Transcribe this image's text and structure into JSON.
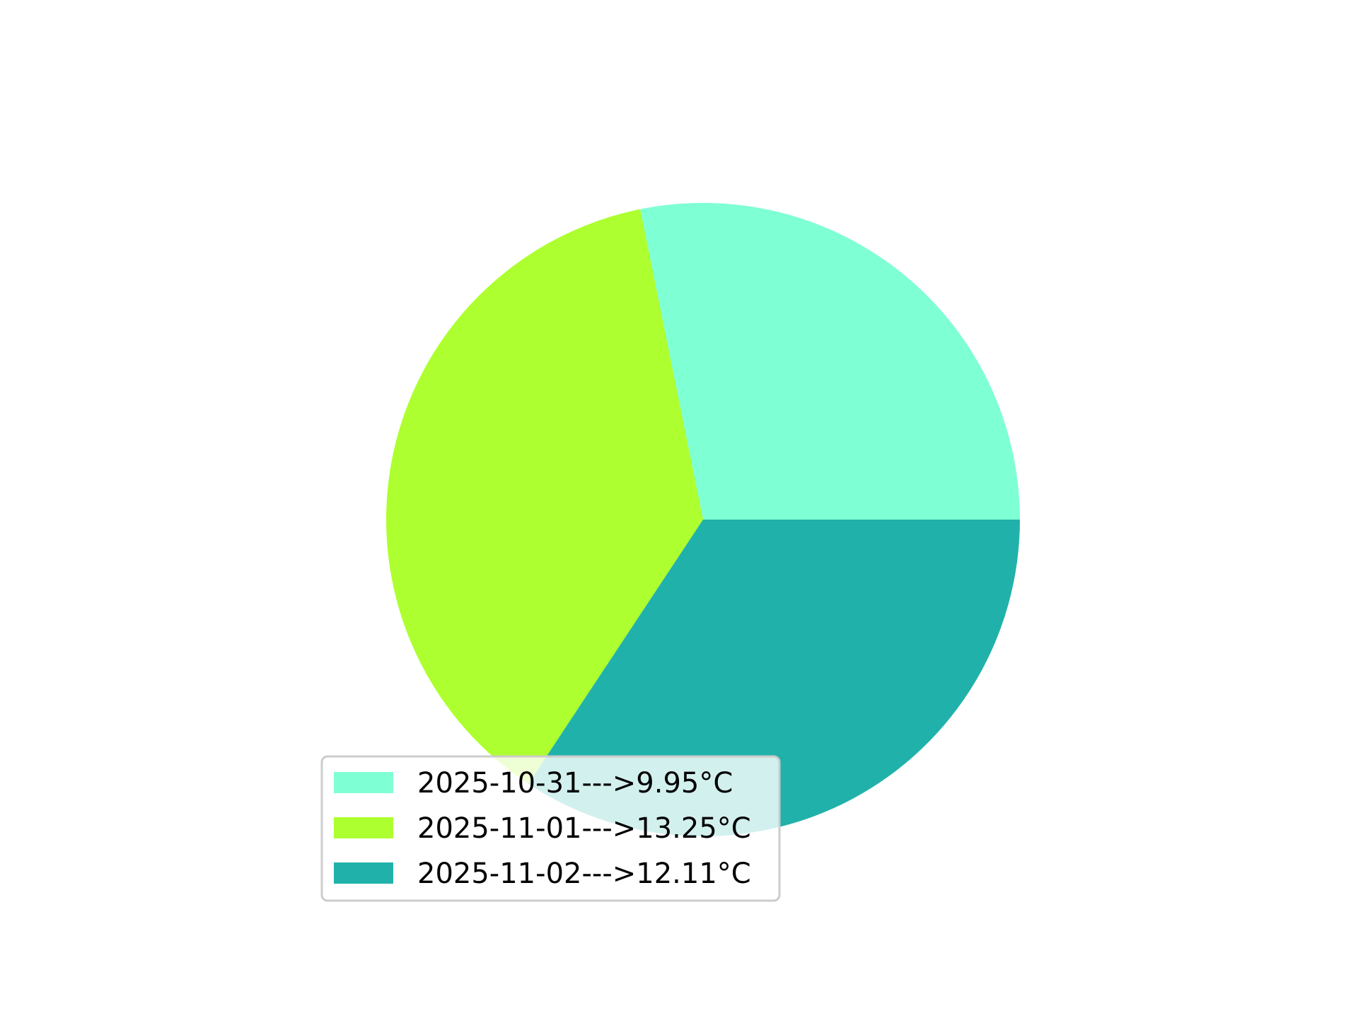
{
  "chart_data": {
    "type": "pie",
    "categories": [
      "2025-10-31",
      "2025-11-01",
      "2025-11-02"
    ],
    "values": [
      9.95,
      13.25,
      12.11
    ],
    "labels": [
      "2025-10-31--->9.95°C",
      "2025-11-01--->13.25°C",
      "2025-11-02--->12.11°C"
    ],
    "colors": [
      "#7fffd4",
      "#adff2f",
      "#20b2aa"
    ],
    "start_angle_deg": 0,
    "direction": "counterclockwise",
    "legend_position": "lower-left"
  }
}
